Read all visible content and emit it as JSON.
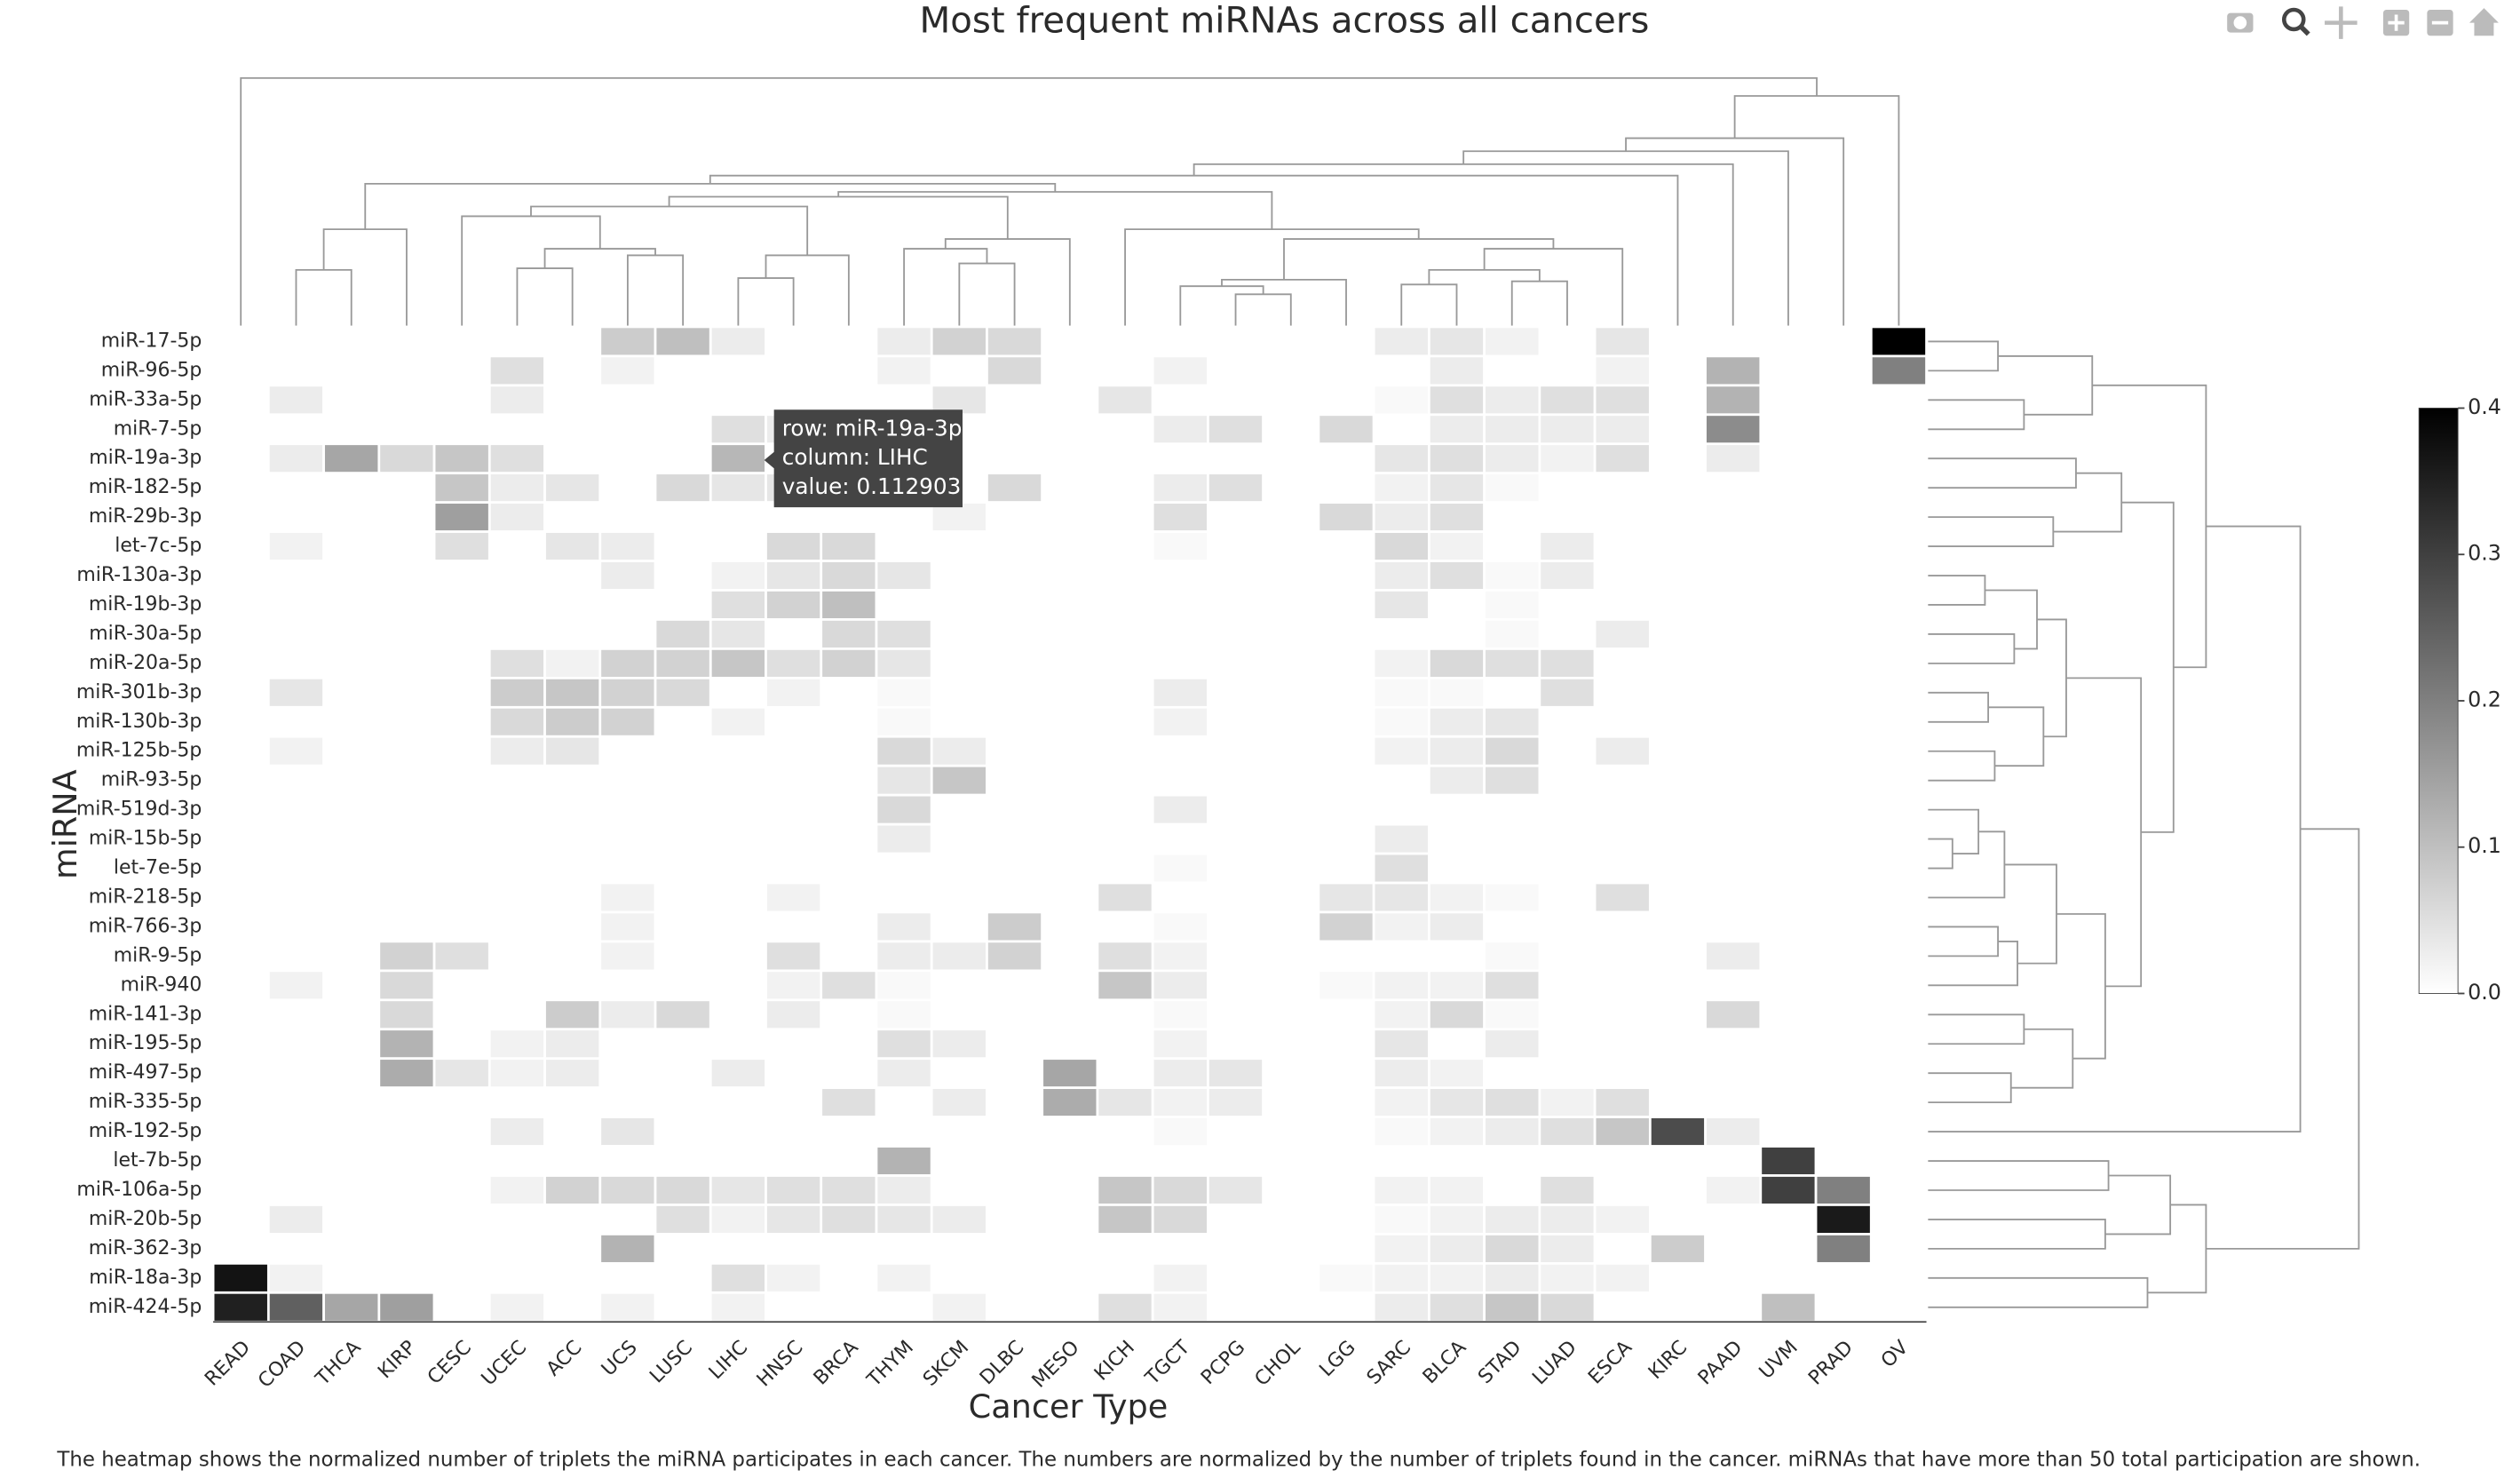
{
  "chart_data": {
    "type": "heatmap",
    "title": "Most frequent miRNAs across all cancers",
    "xlabel": "Cancer Type",
    "ylabel": "miRNA",
    "caption": "The heatmap shows the normalized number of triplets the miRNA participates in each cancer. The numbers are normalized by the number of triplets found in the cancer. miRNAs that have more than 50 total participation are shown.",
    "x": [
      "READ",
      "COAD",
      "THCA",
      "KIRP",
      "CESC",
      "UCEC",
      "ACC",
      "UCS",
      "LUSC",
      "LIHC",
      "HNSC",
      "BRCA",
      "THYM",
      "SKCM",
      "DLBC",
      "MESO",
      "KICH",
      "TGCT",
      "PCPG",
      "CHOL",
      "LGG",
      "SARC",
      "BLCA",
      "STAD",
      "LUAD",
      "ESCA",
      "KIRC",
      "PAAD",
      "UVM",
      "PRAD",
      "OV"
    ],
    "y": [
      "miR-17-5p",
      "miR-96-5p",
      "miR-33a-5p",
      "miR-7-5p",
      "miR-19a-3p",
      "miR-182-5p",
      "miR-29b-3p",
      "let-7c-5p",
      "miR-130a-3p",
      "miR-19b-3p",
      "miR-30a-5p",
      "miR-20a-5p",
      "miR-301b-3p",
      "miR-130b-3p",
      "miR-125b-5p",
      "miR-93-5p",
      "miR-519d-3p",
      "miR-15b-5p",
      "let-7e-5p",
      "miR-218-5p",
      "miR-766-3p",
      "miR-9-5p",
      "miR-940",
      "miR-141-3p",
      "miR-195-5p",
      "miR-497-5p",
      "miR-335-5p",
      "miR-192-5p",
      "let-7b-5p",
      "miR-106a-5p",
      "miR-20b-5p",
      "miR-362-3p",
      "miR-18a-3p",
      "miR-424-5p"
    ],
    "z": [
      [
        0,
        0,
        0,
        0,
        0,
        0,
        0,
        0.08,
        0.1,
        0.03,
        0,
        0,
        0.03,
        0.07,
        0.06,
        0,
        0,
        0,
        0,
        0,
        0,
        0.03,
        0.04,
        0.02,
        0,
        0.04,
        0,
        0,
        0,
        0,
        0.4
      ],
      [
        0,
        0,
        0,
        0,
        0,
        0.05,
        0,
        0.02,
        0,
        0,
        0,
        0,
        0.02,
        0,
        0.06,
        0,
        0,
        0.02,
        0,
        0,
        0,
        0,
        0.03,
        0,
        0,
        0.02,
        0,
        0.12,
        0,
        0,
        0.2
      ],
      [
        0,
        0.03,
        0,
        0,
        0,
        0.03,
        0,
        0,
        0,
        0,
        0,
        0,
        0,
        0.04,
        0,
        0,
        0.04,
        0,
        0,
        0,
        0,
        0.01,
        0.05,
        0.03,
        0.05,
        0.05,
        0,
        0.12,
        0,
        0,
        0
      ],
      [
        0,
        0,
        0,
        0,
        0,
        0,
        0,
        0,
        0,
        0.05,
        0.03,
        0,
        0,
        0,
        0,
        0,
        0,
        0.03,
        0.05,
        0,
        0.06,
        0,
        0.03,
        0.03,
        0.03,
        0.03,
        0,
        0.18,
        0,
        0,
        0
      ],
      [
        0,
        0.03,
        0.14,
        0.06,
        0.09,
        0.05,
        0,
        0,
        0,
        0.112903,
        0,
        0,
        0,
        0,
        0,
        0,
        0,
        0,
        0,
        0,
        0,
        0.04,
        0.05,
        0.03,
        0.02,
        0.05,
        0,
        0.03,
        0,
        0,
        0
      ],
      [
        0,
        0,
        0,
        0,
        0.09,
        0.03,
        0.04,
        0,
        0.06,
        0.04,
        0.04,
        0.04,
        0,
        0,
        0.06,
        0,
        0,
        0.03,
        0.05,
        0,
        0,
        0.02,
        0.04,
        0.01,
        0,
        0,
        0,
        0,
        0,
        0,
        0
      ],
      [
        0,
        0,
        0,
        0,
        0.15,
        0.03,
        0,
        0,
        0,
        0,
        0,
        0,
        0,
        0.02,
        0,
        0,
        0,
        0.05,
        0,
        0,
        0.06,
        0.03,
        0.05,
        0,
        0,
        0,
        0,
        0,
        0,
        0,
        0
      ],
      [
        0,
        0.02,
        0,
        0,
        0.05,
        0,
        0.04,
        0.03,
        0,
        0,
        0.06,
        0.06,
        0,
        0,
        0,
        0,
        0,
        0.01,
        0,
        0,
        0,
        0.06,
        0.02,
        0,
        0.03,
        0,
        0,
        0,
        0,
        0,
        0
      ],
      [
        0,
        0,
        0,
        0,
        0,
        0,
        0,
        0.03,
        0,
        0.02,
        0.04,
        0.06,
        0.04,
        0,
        0,
        0,
        0,
        0,
        0,
        0,
        0,
        0.03,
        0.05,
        0.01,
        0.03,
        0,
        0,
        0,
        0,
        0,
        0
      ],
      [
        0,
        0,
        0,
        0,
        0,
        0,
        0,
        0,
        0,
        0.05,
        0.07,
        0.1,
        0,
        0,
        0,
        0,
        0,
        0,
        0,
        0,
        0,
        0.04,
        0,
        0.01,
        0,
        0,
        0,
        0,
        0,
        0,
        0
      ],
      [
        0,
        0,
        0,
        0,
        0,
        0,
        0,
        0,
        0.06,
        0.04,
        0,
        0.06,
        0.05,
        0,
        0,
        0,
        0,
        0,
        0,
        0,
        0,
        0,
        0,
        0.01,
        0,
        0.03,
        0,
        0,
        0,
        0,
        0
      ],
      [
        0,
        0,
        0,
        0,
        0,
        0.05,
        0.02,
        0.07,
        0.07,
        0.09,
        0.05,
        0.07,
        0.04,
        0,
        0,
        0,
        0,
        0,
        0,
        0,
        0,
        0.02,
        0.06,
        0.05,
        0.05,
        0,
        0,
        0,
        0,
        0,
        0
      ],
      [
        0,
        0.04,
        0,
        0,
        0,
        0.08,
        0.09,
        0.07,
        0.06,
        0,
        0.02,
        0,
        0.01,
        0,
        0,
        0,
        0,
        0.03,
        0,
        0,
        0,
        0.01,
        0.01,
        0,
        0.05,
        0,
        0,
        0,
        0,
        0,
        0
      ],
      [
        0,
        0,
        0,
        0,
        0,
        0.06,
        0.08,
        0.07,
        0,
        0.02,
        0,
        0,
        0.01,
        0,
        0,
        0,
        0,
        0.02,
        0,
        0,
        0,
        0.01,
        0.03,
        0.04,
        0,
        0,
        0,
        0,
        0,
        0,
        0
      ],
      [
        0,
        0.02,
        0,
        0,
        0,
        0.03,
        0.04,
        0,
        0,
        0,
        0,
        0,
        0.06,
        0.03,
        0,
        0,
        0,
        0,
        0,
        0,
        0,
        0.02,
        0.03,
        0.06,
        0,
        0.03,
        0,
        0,
        0,
        0,
        0
      ],
      [
        0,
        0,
        0,
        0,
        0,
        0,
        0,
        0,
        0,
        0,
        0,
        0,
        0.04,
        0.09,
        0,
        0,
        0,
        0,
        0,
        0,
        0,
        0,
        0.03,
        0.05,
        0,
        0,
        0,
        0,
        0,
        0,
        0
      ],
      [
        0,
        0,
        0,
        0,
        0,
        0,
        0,
        0,
        0,
        0,
        0,
        0,
        0.06,
        0,
        0,
        0,
        0,
        0.03,
        0,
        0,
        0,
        0,
        0,
        0,
        0,
        0,
        0,
        0,
        0,
        0,
        0
      ],
      [
        0,
        0,
        0,
        0,
        0,
        0,
        0,
        0,
        0,
        0,
        0,
        0,
        0.03,
        0,
        0,
        0,
        0,
        0,
        0,
        0,
        0,
        0.03,
        0,
        0,
        0,
        0,
        0,
        0,
        0,
        0,
        0
      ],
      [
        0,
        0,
        0,
        0,
        0,
        0,
        0,
        0,
        0,
        0,
        0,
        0,
        0,
        0,
        0,
        0,
        0,
        0.01,
        0,
        0,
        0,
        0.05,
        0,
        0,
        0,
        0,
        0,
        0,
        0,
        0,
        0
      ],
      [
        0,
        0,
        0,
        0,
        0,
        0,
        0,
        0.02,
        0,
        0,
        0.02,
        0,
        0,
        0,
        0,
        0,
        0.05,
        0,
        0,
        0,
        0.04,
        0.04,
        0.02,
        0.01,
        0,
        0.05,
        0,
        0,
        0,
        0,
        0
      ],
      [
        0,
        0,
        0,
        0,
        0,
        0,
        0,
        0.02,
        0,
        0,
        0,
        0,
        0.03,
        0,
        0.08,
        0,
        0,
        0.01,
        0,
        0,
        0.07,
        0.02,
        0.03,
        0,
        0,
        0,
        0,
        0,
        0,
        0,
        0
      ],
      [
        0,
        0,
        0,
        0.07,
        0.05,
        0,
        0,
        0.02,
        0,
        0,
        0.05,
        0,
        0.03,
        0.03,
        0.07,
        0,
        0.05,
        0.02,
        0,
        0,
        0,
        0,
        0,
        0.01,
        0,
        0,
        0,
        0.03,
        0,
        0,
        0
      ],
      [
        0,
        0.02,
        0,
        0.06,
        0,
        0,
        0,
        0,
        0,
        0,
        0.02,
        0.05,
        0.01,
        0,
        0,
        0,
        0.09,
        0.03,
        0,
        0,
        0.01,
        0.02,
        0.02,
        0.05,
        0,
        0,
        0,
        0,
        0,
        0,
        0
      ],
      [
        0,
        0,
        0,
        0.06,
        0,
        0,
        0.08,
        0.03,
        0.06,
        0,
        0.03,
        0,
        0.01,
        0,
        0,
        0,
        0,
        0.01,
        0,
        0,
        0,
        0.02,
        0.06,
        0.01,
        0,
        0,
        0,
        0.06,
        0,
        0,
        0
      ],
      [
        0,
        0,
        0,
        0.12,
        0,
        0.02,
        0.03,
        0,
        0,
        0,
        0,
        0,
        0.05,
        0.03,
        0,
        0,
        0,
        0.02,
        0,
        0,
        0,
        0.04,
        0,
        0.03,
        0,
        0,
        0,
        0,
        0,
        0,
        0
      ],
      [
        0,
        0,
        0,
        0.13,
        0.04,
        0.02,
        0.03,
        0,
        0,
        0.03,
        0,
        0,
        0.03,
        0,
        0,
        0.14,
        0,
        0.03,
        0.04,
        0,
        0,
        0.03,
        0.02,
        0,
        0,
        0,
        0,
        0,
        0,
        0,
        0
      ],
      [
        0,
        0,
        0,
        0,
        0,
        0,
        0,
        0,
        0,
        0,
        0,
        0.05,
        0,
        0.03,
        0,
        0.13,
        0.04,
        0.02,
        0.03,
        0,
        0,
        0.02,
        0.04,
        0.05,
        0.02,
        0.05,
        0,
        0,
        0,
        0,
        0
      ],
      [
        0,
        0,
        0,
        0,
        0,
        0.03,
        0,
        0.04,
        0,
        0,
        0,
        0,
        0,
        0,
        0,
        0,
        0,
        0.01,
        0,
        0,
        0,
        0.01,
        0.02,
        0.03,
        0.05,
        0.09,
        0.28,
        0.03,
        0,
        0,
        0
      ],
      [
        0,
        0,
        0,
        0,
        0,
        0,
        0,
        0,
        0,
        0,
        0,
        0,
        0.12,
        0,
        0,
        0,
        0,
        0,
        0,
        0,
        0,
        0,
        0,
        0,
        0,
        0,
        0,
        0,
        0.3,
        0,
        0
      ],
      [
        0,
        0,
        0,
        0,
        0,
        0.02,
        0.07,
        0.06,
        0.06,
        0.04,
        0.05,
        0.05,
        0.03,
        0,
        0,
        0,
        0.09,
        0.06,
        0.04,
        0,
        0,
        0.02,
        0.02,
        0,
        0.05,
        0,
        0,
        0.02,
        0.3,
        0.2,
        0
      ],
      [
        0,
        0.03,
        0,
        0,
        0,
        0,
        0,
        0,
        0.05,
        0.02,
        0.04,
        0.05,
        0.04,
        0.03,
        0,
        0,
        0.09,
        0.06,
        0,
        0,
        0,
        0.01,
        0.02,
        0.03,
        0.03,
        0.02,
        0,
        0,
        0,
        0.36,
        0
      ],
      [
        0,
        0,
        0,
        0,
        0,
        0,
        0,
        0.12,
        0,
        0,
        0,
        0,
        0,
        0,
        0,
        0,
        0,
        0,
        0,
        0,
        0,
        0.02,
        0.03,
        0.06,
        0.03,
        0,
        0.08,
        0,
        0,
        0.2,
        0
      ],
      [
        0.37,
        0.02,
        0,
        0,
        0,
        0,
        0,
        0,
        0,
        0.05,
        0.02,
        0,
        0.02,
        0,
        0,
        0,
        0,
        0.02,
        0,
        0,
        0.01,
        0.02,
        0.02,
        0.03,
        0.02,
        0.02,
        0,
        0,
        0,
        0,
        0
      ],
      [
        0.35,
        0.25,
        0.14,
        0.15,
        0,
        0.02,
        0,
        0.02,
        0,
        0.02,
        0,
        0,
        0,
        0.02,
        0,
        0,
        0.05,
        0.02,
        0,
        0,
        0,
        0.03,
        0.05,
        0.09,
        0.06,
        0,
        0,
        0,
        0.1,
        0,
        0
      ]
    ],
    "colorscale": [
      "#ffffff",
      "#000000"
    ],
    "zlim": [
      0,
      0.4
    ],
    "zticks": [
      {
        "value": 0,
        "label": "0.0"
      },
      0.1,
      0.2,
      0.3,
      0.4
    ],
    "tooltip": [
      "row: miR-19a-3p",
      "column: LIHC",
      "value: 0.112903"
    ]
  }
}
